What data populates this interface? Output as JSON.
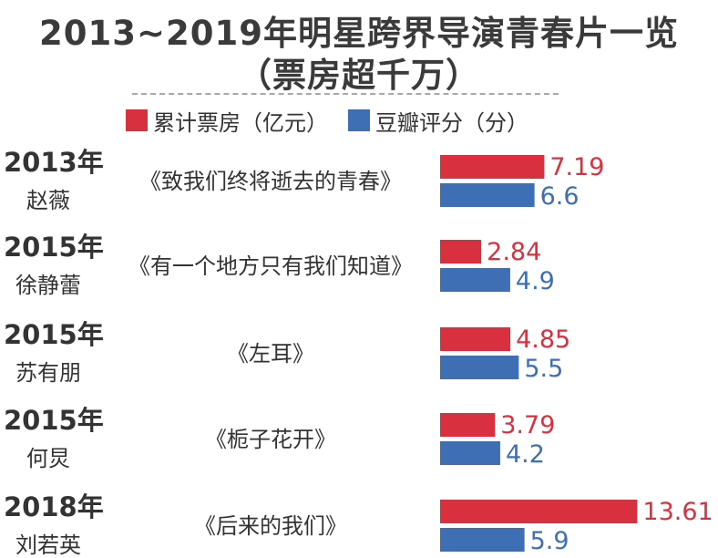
{
  "title_line1": "2013~2019年明星跨界导演青春片一览",
  "title_line2": "（票房超千万）",
  "chart_data": {
    "type": "bar",
    "orientation": "horizontal",
    "legend": [
      {
        "name": "累计票房（亿元）",
        "color": "#d8303e"
      },
      {
        "name": "豆瓣评分（分）",
        "color": "#3e6fb4"
      }
    ],
    "rows": [
      {
        "year": "2013年",
        "director": "赵薇",
        "film": "《致我们终将逝去的青春》",
        "box_office": 7.19,
        "box_office_label": "7.19",
        "rating": 6.6,
        "rating_label": "6.6"
      },
      {
        "year": "2015年",
        "director": "徐静蕾",
        "film": "《有一个地方只有我们知道》",
        "box_office": 2.84,
        "box_office_label": "2.84",
        "rating": 4.9,
        "rating_label": "4.9"
      },
      {
        "year": "2015年",
        "director": "苏有朋",
        "film": "《左耳》",
        "box_office": 4.85,
        "box_office_label": "4.85",
        "rating": 5.5,
        "rating_label": "5.5"
      },
      {
        "year": "2015年",
        "director": "何炅",
        "film": "《栀子花开》",
        "box_office": 3.79,
        "box_office_label": "3.79",
        "rating": 4.2,
        "rating_label": "4.2"
      },
      {
        "year": "2018年",
        "director": "刘若英",
        "film": "《后来的我们》",
        "box_office": 13.61,
        "box_office_label": "13.61",
        "rating": 5.9,
        "rating_label": "5.9"
      }
    ]
  }
}
